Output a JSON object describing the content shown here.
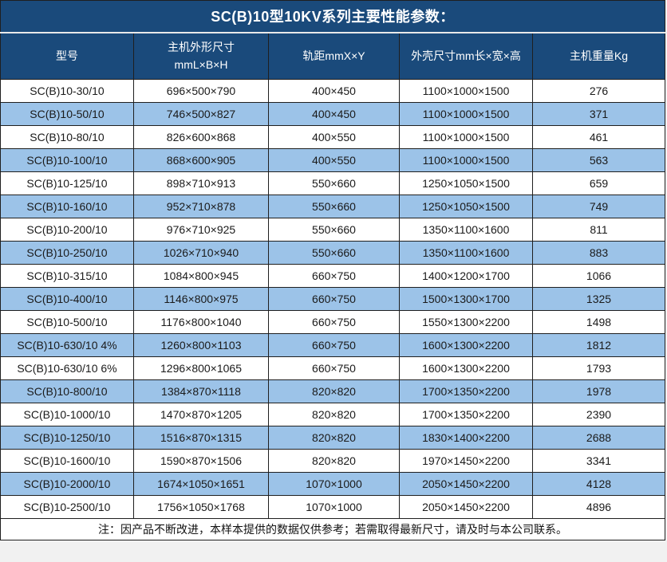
{
  "title": "SC(B)10型10KV系列主要性能参数：",
  "colors": {
    "header_bg": "#1a4a7b",
    "zebra_row_bg": "#9cc3e8",
    "grid_line": "#1f1f1f",
    "header_text": "#ffffff",
    "cell_text": "#1a1a1a"
  },
  "table": {
    "headers": {
      "model": "型号",
      "host_dims_line1": "主机外形尺寸",
      "host_dims_line2": "mmL×B×H",
      "rail": "轨距mmX×Y",
      "shell": "外壳尺寸mm长×宽×高",
      "weight": "主机重量Kg"
    },
    "rows": [
      [
        "SC(B)10-30/10",
        "696×500×790",
        "400×450",
        "1100×1000×1500",
        "276"
      ],
      [
        "SC(B)10-50/10",
        "746×500×827",
        "400×450",
        "1100×1000×1500",
        "371"
      ],
      [
        "SC(B)10-80/10",
        "826×600×868",
        "400×550",
        "1100×1000×1500",
        "461"
      ],
      [
        "SC(B)10-100/10",
        "868×600×905",
        "400×550",
        "1100×1000×1500",
        "563"
      ],
      [
        "SC(B)10-125/10",
        "898×710×913",
        "550×660",
        "1250×1050×1500",
        "659"
      ],
      [
        "SC(B)10-160/10",
        "952×710×878",
        "550×660",
        "1250×1050×1500",
        "749"
      ],
      [
        "SC(B)10-200/10",
        "976×710×925",
        "550×660",
        "1350×1100×1600",
        "811"
      ],
      [
        "SC(B)10-250/10",
        "1026×710×940",
        "550×660",
        "1350×1100×1600",
        "883"
      ],
      [
        "SC(B)10-315/10",
        "1084×800×945",
        "660×750",
        "1400×1200×1700",
        "1066"
      ],
      [
        "SC(B)10-400/10",
        "1146×800×975",
        "660×750",
        "1500×1300×1700",
        "1325"
      ],
      [
        "SC(B)10-500/10",
        "1176×800×1040",
        "660×750",
        "1550×1300×2200",
        "1498"
      ],
      [
        "SC(B)10-630/10 4%",
        "1260×800×1103",
        "660×750",
        "1600×1300×2200",
        "1812"
      ],
      [
        "SC(B)10-630/10 6%",
        "1296×800×1065",
        "660×750",
        "1600×1300×2200",
        "1793"
      ],
      [
        "SC(B)10-800/10",
        "1384×870×1118",
        "820×820",
        "1700×1350×2200",
        "1978"
      ],
      [
        "SC(B)10-1000/10",
        "1470×870×1205",
        "820×820",
        "1700×1350×2200",
        "2390"
      ],
      [
        "SC(B)10-1250/10",
        "1516×870×1315",
        "820×820",
        "1830×1400×2200",
        "2688"
      ],
      [
        "SC(B)10-1600/10",
        "1590×870×1506",
        "820×820",
        "1970×1450×2200",
        "3341"
      ],
      [
        "SC(B)10-2000/10",
        "1674×1050×1651",
        "1070×1000",
        "2050×1450×2200",
        "4128"
      ],
      [
        "SC(B)10-2500/10",
        "1756×1050×1768",
        "1070×1000",
        "2050×1450×2200",
        "4896"
      ]
    ]
  },
  "note": "注：因产品不断改进，本样本提供的数据仅供参考；若需取得最新尺寸，请及时与本公司联系。"
}
